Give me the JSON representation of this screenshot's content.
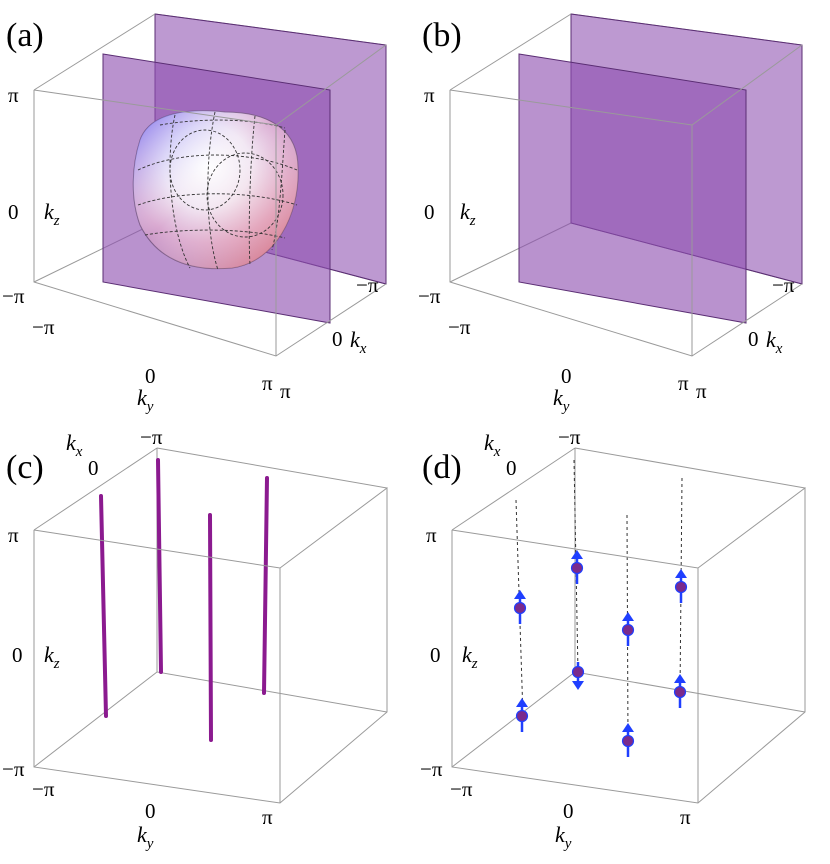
{
  "panels": [
    {
      "label": "(a)",
      "kz_ticks": [
        "π",
        "0",
        "−π"
      ],
      "kx_ticks": [
        "−π",
        "0",
        "π"
      ],
      "ky_ticks": [
        "−π",
        "0",
        "π"
      ],
      "kz_label": {
        "base": "k",
        "sub": "z"
      },
      "kx_label": {
        "base": "k",
        "sub": "x"
      },
      "ky_label": {
        "base": "k",
        "sub": "y"
      }
    },
    {
      "label": "(b)",
      "kz_ticks": [
        "π",
        "0",
        "−π"
      ],
      "kx_ticks": [
        "−π",
        "0",
        "π"
      ],
      "ky_ticks": [
        "−π",
        "0",
        "π"
      ],
      "kz_label": {
        "base": "k",
        "sub": "z"
      },
      "kx_label": {
        "base": "k",
        "sub": "x"
      },
      "ky_label": {
        "base": "k",
        "sub": "y"
      }
    },
    {
      "label": "(c)",
      "kz_ticks": [
        "π",
        "0",
        "−π"
      ],
      "kx_ticks": [
        "0",
        "−π"
      ],
      "ky_ticks": [
        "−π",
        "0",
        "π"
      ],
      "kz_label": {
        "base": "k",
        "sub": "z"
      },
      "kx_label": {
        "base": "k",
        "sub": "x"
      },
      "ky_label": {
        "base": "k",
        "sub": "y"
      }
    },
    {
      "label": "(d)",
      "kz_ticks": [
        "π",
        "0",
        "−π"
      ],
      "kx_ticks": [
        "0",
        "−π"
      ],
      "ky_ticks": [
        "−π",
        "0",
        "π"
      ],
      "kz_label": {
        "base": "k",
        "sub": "z"
      },
      "kx_label": {
        "base": "k",
        "sub": "x"
      },
      "ky_label": {
        "base": "k",
        "sub": "y"
      }
    }
  ],
  "colors": {
    "plane_fill": "#8e4fb0",
    "plane_edge": "#5a2d73",
    "box_edge": "#9a9a9a",
    "line_purple": "#8b1a8f",
    "dot_fill": "#7a2a8c",
    "arrow_blue": "#1f3fff"
  },
  "spin_directions_panel_d": [
    "up",
    "up",
    "up",
    "down",
    "up",
    "up",
    "up",
    "up"
  ]
}
